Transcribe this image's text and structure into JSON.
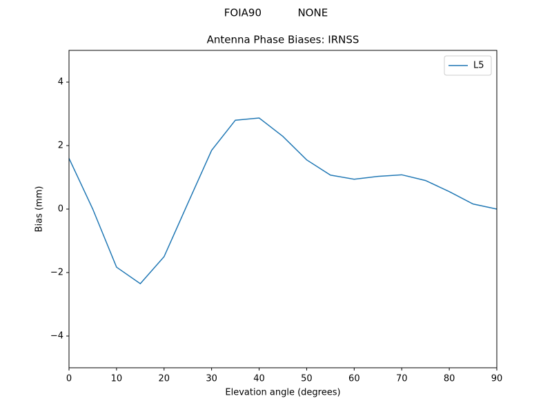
{
  "chart_data": {
    "type": "line",
    "suptitle": "FOIA90           NONE",
    "title": "Antenna Phase Biases: IRNSS",
    "xlabel": "Elevation angle (degrees)",
    "ylabel": "Bias (mm)",
    "x": [
      0,
      5,
      10,
      15,
      20,
      25,
      30,
      35,
      40,
      45,
      50,
      55,
      60,
      65,
      70,
      75,
      80,
      85,
      90
    ],
    "series": [
      {
        "name": "L5",
        "color": "#1f77b4",
        "values": [
          1.6,
          0.0,
          -1.83,
          -2.35,
          -1.5,
          0.18,
          1.85,
          2.8,
          2.87,
          2.29,
          1.55,
          1.07,
          0.94,
          1.03,
          1.08,
          0.9,
          0.55,
          0.16,
          0.0
        ]
      }
    ],
    "xlim": [
      0,
      90
    ],
    "xticks": [
      0,
      10,
      20,
      30,
      40,
      50,
      60,
      70,
      80,
      90
    ],
    "ylim": [
      -5,
      5
    ],
    "yticks": [
      {
        "value": -4,
        "label": "−4"
      },
      {
        "value": -2,
        "label": "−2"
      },
      0,
      2,
      4
    ],
    "grid": false,
    "legend": "upper-right"
  }
}
